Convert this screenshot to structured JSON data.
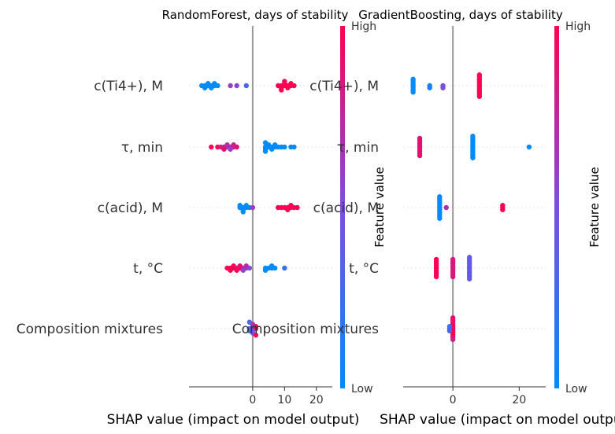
{
  "chart_data": [
    {
      "type": "scatter",
      "subtype": "shap-beeswarm",
      "title": "RandomForest, days of stability",
      "xlabel": "SHAP value (impact on model output)",
      "xlim": [
        -20,
        25
      ],
      "xticks": [
        0,
        10,
        20
      ],
      "features": [
        "c(Ti4+), M",
        "τ, min",
        "c(acid), M",
        "t, °C",
        "Composition mixtures"
      ],
      "points": [
        [
          [
            -16,
            0.0
          ],
          [
            -15,
            0.0
          ],
          [
            -14,
            0.0
          ],
          [
            -13,
            0.0
          ],
          [
            -12,
            0.0
          ],
          [
            -11,
            0.0
          ],
          [
            -15,
            0.05
          ],
          [
            -13,
            0.05
          ],
          [
            -14,
            -0.05
          ],
          [
            -12,
            -0.05
          ],
          [
            -7,
            0.0
          ],
          [
            -5,
            0.0
          ],
          [
            -2,
            0.0
          ],
          [
            8,
            0.0
          ],
          [
            9,
            0.0
          ],
          [
            10,
            0.0
          ],
          [
            11,
            0.0
          ],
          [
            12,
            0.0
          ],
          [
            13,
            0.0
          ],
          [
            9,
            0.05
          ],
          [
            11,
            0.05
          ],
          [
            10,
            -0.05
          ],
          [
            12,
            -0.05
          ],
          [
            9,
            0.1
          ],
          [
            10,
            -0.1
          ]
        ],
        [
          [
            -13,
            0.0
          ],
          [
            -11,
            0.0
          ],
          [
            -10,
            0.0
          ],
          [
            -9,
            0.0
          ],
          [
            -8,
            0.0
          ],
          [
            -7,
            0.0
          ],
          [
            -6,
            0.0
          ],
          [
            -5,
            0.0
          ],
          [
            -9,
            0.05
          ],
          [
            -7,
            0.05
          ],
          [
            -8,
            -0.05
          ],
          [
            -6,
            -0.05
          ],
          [
            4,
            0.0
          ],
          [
            5,
            0.0
          ],
          [
            6,
            0.0
          ],
          [
            7,
            0.0
          ],
          [
            8,
            0.0
          ],
          [
            9,
            0.0
          ],
          [
            10,
            0.0
          ],
          [
            12,
            0.0
          ],
          [
            13,
            0.0
          ],
          [
            4,
            0.05
          ],
          [
            6,
            0.05
          ],
          [
            5,
            -0.05
          ],
          [
            7,
            -0.05
          ],
          [
            4,
            0.1
          ],
          [
            4,
            -0.1
          ]
        ],
        [
          [
            -4,
            0.0
          ],
          [
            -3,
            0.0
          ],
          [
            -2,
            0.0
          ],
          [
            -1,
            0.0
          ],
          [
            0,
            0.0
          ],
          [
            -3,
            0.05
          ],
          [
            -2,
            -0.05
          ],
          [
            -4,
            -0.05
          ],
          [
            -3,
            0.1
          ],
          [
            8,
            0.0
          ],
          [
            9,
            0.0
          ],
          [
            10,
            0.0
          ],
          [
            11,
            0.0
          ],
          [
            12,
            0.0
          ],
          [
            13,
            0.0
          ],
          [
            14,
            0.0
          ],
          [
            11,
            0.05
          ],
          [
            12,
            -0.05
          ]
        ],
        [
          [
            -8,
            0.0
          ],
          [
            -7,
            0.0
          ],
          [
            -6,
            0.0
          ],
          [
            -5,
            0.0
          ],
          [
            -4,
            0.0
          ],
          [
            -3,
            0.0
          ],
          [
            -2,
            0.0
          ],
          [
            -1,
            0.0
          ],
          [
            -7,
            0.05
          ],
          [
            -5,
            0.05
          ],
          [
            -3,
            0.05
          ],
          [
            -6,
            -0.05
          ],
          [
            -4,
            -0.05
          ],
          [
            -2,
            -0.05
          ],
          [
            4,
            0.0
          ],
          [
            5,
            0.0
          ],
          [
            6,
            0.0
          ],
          [
            7,
            0.0
          ],
          [
            10,
            0.0
          ],
          [
            4,
            0.05
          ],
          [
            6,
            -0.05
          ]
        ],
        [
          [
            -1,
            0.0
          ],
          [
            0,
            0.0
          ],
          [
            1,
            0.0
          ],
          [
            0,
            0.05
          ],
          [
            0,
            -0.05
          ],
          [
            -1,
            0.05
          ],
          [
            1,
            -0.05
          ],
          [
            0,
            0.1
          ],
          [
            0,
            -0.1
          ],
          [
            1,
            0.15
          ],
          [
            -1,
            -0.15
          ]
        ]
      ],
      "point_color_values": [
        [
          0,
          0,
          0,
          0,
          0,
          0,
          0,
          0,
          0,
          0,
          0.6,
          0.55,
          0.3,
          1,
          1,
          1,
          1,
          1,
          1,
          1,
          1,
          1,
          1,
          1,
          1
        ],
        [
          1,
          1,
          0.8,
          0.8,
          0.6,
          0.7,
          0.8,
          0.9,
          0.9,
          0.6,
          0.7,
          0.8,
          0,
          0,
          0,
          0.1,
          0,
          0,
          0,
          0,
          0,
          0,
          0,
          0,
          0,
          0,
          0
        ],
        [
          0,
          0,
          0,
          0.1,
          0.6,
          0,
          0,
          0,
          0,
          1,
          1,
          1,
          1,
          1,
          1,
          1,
          1,
          1
        ],
        [
          1,
          1,
          1,
          0.8,
          1,
          0.7,
          0.6,
          0.5,
          1,
          1,
          0.6,
          1,
          0.9,
          0.7,
          0,
          0,
          0.1,
          0,
          0.2,
          0,
          0
        ],
        [
          0.3,
          0.5,
          1,
          0.4,
          0.6,
          0.2,
          1,
          0.5,
          0.7,
          1,
          0.3
        ]
      ]
    },
    {
      "type": "scatter",
      "subtype": "shap-beeswarm",
      "title": "GradientBoosting, days of stability",
      "xlabel": "SHAP value (impact on model output)",
      "xlim": [
        -15,
        28
      ],
      "xticks": [
        0,
        20
      ],
      "features": [
        "c(Ti4+), M",
        "τ, min",
        "c(acid), M",
        "t, °C",
        "Composition mixtures"
      ],
      "points": [
        [
          [
            -12,
            0.0
          ],
          [
            -12,
            0.05
          ],
          [
            -12,
            0.1
          ],
          [
            -12,
            -0.05
          ],
          [
            -12,
            -0.1
          ],
          [
            -12,
            0.15
          ],
          [
            -12,
            -0.15
          ],
          [
            -7,
            0.0
          ],
          [
            -7,
            0.05
          ],
          [
            -3,
            0.0
          ],
          [
            -3,
            0.05
          ],
          [
            8,
            0.0
          ],
          [
            8,
            0.05
          ],
          [
            8,
            0.1
          ],
          [
            8,
            0.15
          ],
          [
            8,
            0.2
          ],
          [
            8,
            0.25
          ],
          [
            8,
            -0.05
          ],
          [
            8,
            -0.1
          ],
          [
            8,
            -0.15
          ],
          [
            8,
            -0.2
          ],
          [
            8,
            -0.25
          ]
        ],
        [
          [
            -10,
            0.0
          ],
          [
            -10,
            0.05
          ],
          [
            -10,
            0.1
          ],
          [
            -10,
            0.15
          ],
          [
            -10,
            0.2
          ],
          [
            -10,
            -0.05
          ],
          [
            -10,
            -0.1
          ],
          [
            -10,
            -0.15
          ],
          [
            -10,
            -0.2
          ],
          [
            6,
            0.0
          ],
          [
            6,
            0.05
          ],
          [
            6,
            0.1
          ],
          [
            6,
            0.15
          ],
          [
            6,
            0.2
          ],
          [
            6,
            0.25
          ],
          [
            6,
            -0.05
          ],
          [
            6,
            -0.1
          ],
          [
            6,
            -0.15
          ],
          [
            6,
            -0.2
          ],
          [
            6,
            -0.25
          ],
          [
            23,
            0.0
          ]
        ],
        [
          [
            -4,
            0.0
          ],
          [
            -4,
            0.05
          ],
          [
            -4,
            0.1
          ],
          [
            -4,
            0.15
          ],
          [
            -4,
            0.2
          ],
          [
            -4,
            0.25
          ],
          [
            -4,
            -0.05
          ],
          [
            -4,
            -0.1
          ],
          [
            -4,
            -0.15
          ],
          [
            -4,
            -0.2
          ],
          [
            -4,
            -0.25
          ],
          [
            -2,
            0.0
          ],
          [
            15,
            0.0
          ],
          [
            15,
            0.05
          ],
          [
            15,
            -0.05
          ]
        ],
        [
          [
            -5,
            0.0
          ],
          [
            -5,
            0.05
          ],
          [
            -5,
            0.1
          ],
          [
            -5,
            0.15
          ],
          [
            -5,
            0.2
          ],
          [
            -5,
            -0.05
          ],
          [
            -5,
            -0.1
          ],
          [
            -5,
            -0.15
          ],
          [
            -5,
            -0.2
          ],
          [
            0,
            0.0
          ],
          [
            0,
            0.05
          ],
          [
            0,
            0.1
          ],
          [
            0,
            0.15
          ],
          [
            0,
            0.2
          ],
          [
            0,
            -0.05
          ],
          [
            0,
            -0.1
          ],
          [
            0,
            -0.15
          ],
          [
            0,
            -0.2
          ],
          [
            5,
            0.0
          ],
          [
            5,
            0.05
          ],
          [
            5,
            0.1
          ],
          [
            5,
            0.15
          ],
          [
            5,
            0.2
          ],
          [
            5,
            0.25
          ],
          [
            5,
            -0.05
          ],
          [
            5,
            -0.1
          ],
          [
            5,
            -0.15
          ],
          [
            5,
            -0.2
          ],
          [
            5,
            -0.25
          ]
        ],
        [
          [
            0,
            0.0
          ],
          [
            0,
            0.05
          ],
          [
            0,
            0.1
          ],
          [
            0,
            0.15
          ],
          [
            0,
            0.2
          ],
          [
            0,
            -0.05
          ],
          [
            0,
            -0.1
          ],
          [
            0,
            -0.15
          ],
          [
            0,
            -0.2
          ],
          [
            0,
            0.25
          ],
          [
            0,
            -0.25
          ],
          [
            -1,
            0.0
          ],
          [
            -1,
            0.05
          ],
          [
            -1,
            -0.05
          ]
        ]
      ],
      "point_color_values": [
        [
          0,
          0,
          0,
          0,
          0,
          0,
          0,
          0.1,
          0.1,
          0.5,
          0.5,
          1,
          1,
          1,
          1,
          1,
          1,
          1,
          1,
          1,
          1,
          1
        ],
        [
          0.9,
          0.9,
          0.9,
          0.9,
          0.9,
          0.9,
          0.9,
          0.9,
          0.9,
          0,
          0,
          0,
          0,
          0,
          0,
          0,
          0,
          0,
          0,
          0,
          0
        ],
        [
          0,
          0,
          0,
          0,
          0,
          0,
          0,
          0,
          0,
          0,
          0,
          0.7,
          1,
          1,
          1
        ],
        [
          1,
          1,
          1,
          1,
          1,
          1,
          1,
          1,
          1,
          0.85,
          0.85,
          0.85,
          0.85,
          0.85,
          0.85,
          0.85,
          0.85,
          0.85,
          0.4,
          0.4,
          0.4,
          0.4,
          0.4,
          0.4,
          0.4,
          0.4,
          0.4,
          0.4,
          0.4
        ],
        [
          1,
          1,
          1,
          1,
          0.9,
          0.9,
          1,
          0.9,
          0.9,
          0.8,
          0.9,
          0.2,
          0.3,
          0.2
        ]
      ]
    }
  ],
  "colorbar": {
    "label": "Feature value",
    "high": "High",
    "low": "Low",
    "low_color": "#008bfb",
    "high_color": "#ff0052"
  }
}
